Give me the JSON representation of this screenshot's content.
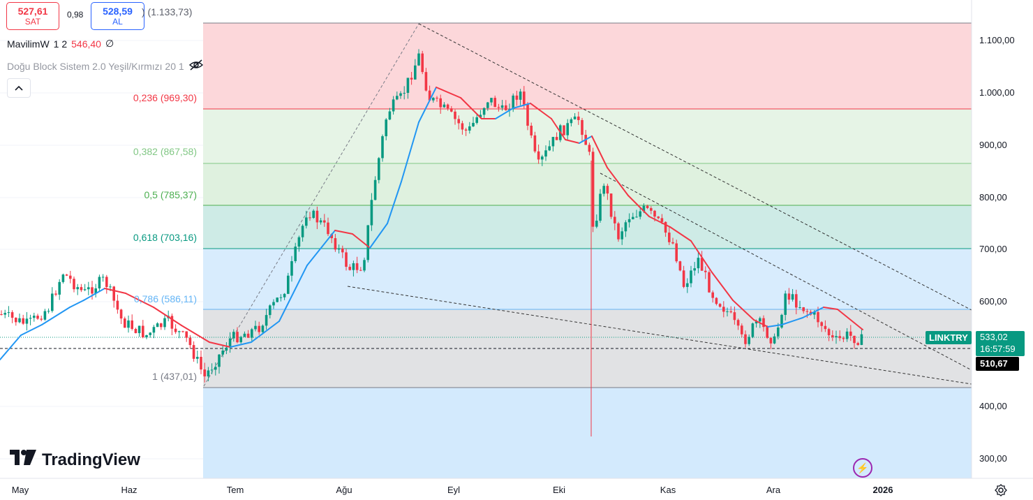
{
  "trade": {
    "sell_price": "527,61",
    "sell_label": "SAT",
    "spread": "0,98",
    "buy_price": "528,59",
    "buy_label": "AL",
    "hidden_value": ") (1.133,73)"
  },
  "indicators": {
    "mavilim_name": "MavilimW",
    "mavilim_params": "1 2",
    "mavilim_value": "546,40",
    "mavilim_symbol": "∅",
    "doblock_name": "Doğu Block Sistem 2.0 Yeşil/Kırmızı 20 1",
    "collapse_icon": "chevron-up-icon"
  },
  "fib_levels": [
    {
      "label": "0,236 (969,30)",
      "color": "#f23645"
    },
    {
      "label": "0,382 (867,58)",
      "color": "#81c784"
    },
    {
      "label": "0,5 (785,37)",
      "color": "#4caf50"
    },
    {
      "label": "0,618 (703,16)",
      "color": "#089981"
    },
    {
      "label": "0,786 (586,11)",
      "color": "#64b5f6"
    },
    {
      "label": "1 (437,01)",
      "color": "#787b86"
    }
  ],
  "y_axis": [
    "1.100,00",
    "1.000,00",
    "900,00",
    "800,00",
    "700,00",
    "600,00",
    "400,00",
    "300,00"
  ],
  "x_axis": [
    "May",
    "Haz",
    "Tem",
    "Ağu",
    "Eyl",
    "Eki",
    "Kas",
    "Ara",
    "2026"
  ],
  "price_tag": {
    "symbol": "LINKTRY",
    "price": "533,02",
    "countdown": "16:57:59"
  },
  "level_tag": "510,67",
  "brand": "TradingView",
  "colors": {
    "up": "#089981",
    "down": "#f23645",
    "mavilim_up": "#2196f3",
    "mavilim_down": "#f23645"
  }
}
